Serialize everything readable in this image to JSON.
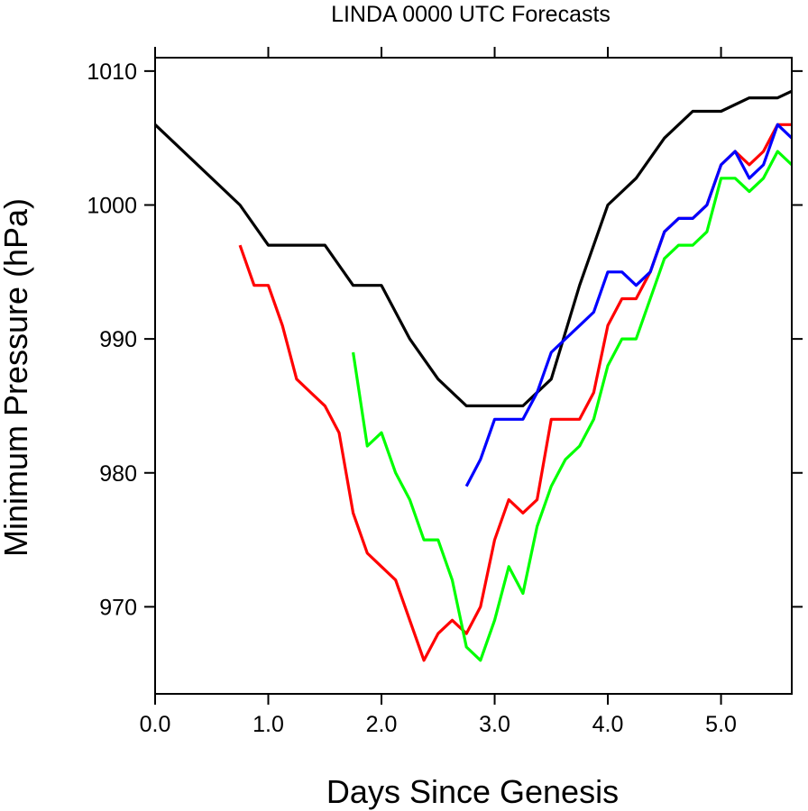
{
  "chart_data": {
    "type": "line",
    "title": "LINDA 0000 UTC Forecasts",
    "xlabel": "Days Since Genesis",
    "ylabel": "Minimum Pressure (hPa)",
    "xlim": [
      0.0,
      5.625
    ],
    "ylim": [
      963.5,
      1011.0
    ],
    "x_ticks": [
      0.0,
      1.0,
      2.0,
      3.0,
      4.0,
      5.0
    ],
    "x_tick_labels": [
      "0.0",
      "1.0",
      "2.0",
      "3.0",
      "4.0",
      "5.0"
    ],
    "y_ticks": [
      970,
      980,
      990,
      1000,
      1010
    ],
    "y_tick_labels": [
      "970",
      "980",
      "990",
      "1000",
      "1010"
    ],
    "grid": false,
    "legend": "none",
    "series": [
      {
        "color": "#000000",
        "x": [
          0.0,
          0.75,
          1.0,
          1.25,
          1.5,
          1.75,
          2.0,
          2.25,
          2.5,
          2.75,
          3.0,
          3.25,
          3.5,
          3.75,
          4.0,
          4.25,
          4.5,
          4.75,
          5.0,
          5.25,
          5.5,
          5.625
        ],
        "y": [
          1006,
          1000,
          997,
          997,
          997,
          994,
          994,
          990,
          987,
          985,
          985,
          985,
          987,
          994,
          1000,
          1002,
          1005,
          1007,
          1007,
          1008,
          1008,
          1008.5
        ]
      },
      {
        "color": "#ff0000",
        "x": [
          0.75,
          0.875,
          1.0,
          1.125,
          1.25,
          1.375,
          1.5,
          1.625,
          1.75,
          1.875,
          2.0,
          2.125,
          2.25,
          2.375,
          2.5,
          2.625,
          2.75,
          2.875,
          3.0,
          3.125,
          3.25,
          3.375,
          3.5,
          3.625,
          3.75,
          3.875,
          4.0,
          4.125,
          4.25,
          4.375,
          4.5,
          4.625,
          4.75,
          4.875,
          5.0,
          5.125,
          5.25,
          5.375,
          5.5,
          5.625
        ],
        "y": [
          997,
          994,
          994,
          991,
          987,
          986,
          985,
          983,
          977,
          974,
          973,
          972,
          969,
          966,
          968,
          969,
          968,
          970,
          975,
          978,
          977,
          978,
          984,
          984,
          984,
          986,
          991,
          993,
          993,
          995,
          998,
          999,
          999,
          1000,
          1003,
          1004,
          1003,
          1004,
          1006,
          1006
        ]
      },
      {
        "color": "#00ff00",
        "x": [
          1.75,
          1.875,
          2.0,
          2.125,
          2.25,
          2.375,
          2.5,
          2.625,
          2.75,
          2.875,
          3.0,
          3.125,
          3.25,
          3.375,
          3.5,
          3.625,
          3.75,
          3.875,
          4.0,
          4.125,
          4.25,
          4.375,
          4.5,
          4.625,
          4.75,
          4.875,
          5.0,
          5.125,
          5.25,
          5.375,
          5.5,
          5.625
        ],
        "y": [
          989,
          982,
          983,
          980,
          978,
          975,
          975,
          972,
          967,
          966,
          969,
          973,
          971,
          976,
          979,
          981,
          982,
          984,
          988,
          990,
          990,
          993,
          996,
          997,
          997,
          998,
          1002,
          1002,
          1001,
          1002,
          1004,
          1003
        ]
      },
      {
        "color": "#0000ff",
        "x": [
          2.75,
          2.875,
          3.0,
          3.125,
          3.25,
          3.375,
          3.5,
          3.625,
          3.75,
          3.875,
          4.0,
          4.125,
          4.25,
          4.375,
          4.5,
          4.625,
          4.75,
          4.875,
          5.0,
          5.125,
          5.25,
          5.375,
          5.5,
          5.625
        ],
        "y": [
          979,
          981,
          984,
          984,
          984,
          986,
          989,
          990,
          991,
          992,
          995,
          995,
          994,
          995,
          998,
          999,
          999,
          1000,
          1003,
          1004,
          1002,
          1003,
          1006,
          1005
        ]
      }
    ]
  }
}
